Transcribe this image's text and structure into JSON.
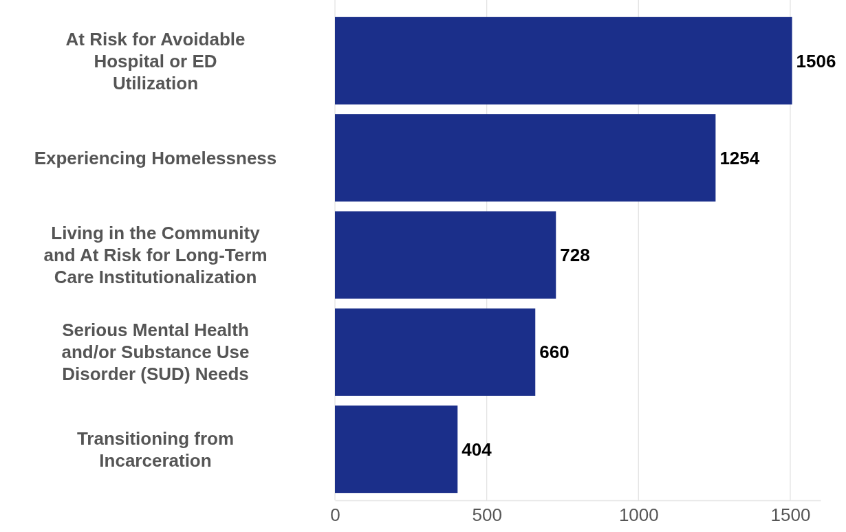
{
  "chart_data": {
    "type": "bar",
    "orientation": "horizontal",
    "categories": [
      "At Risk for Avoidable Hospital or ED Utilization",
      "Experiencing Homelessness",
      "Living in the Community and At Risk for Long-Term Care Institutionalization",
      "Serious Mental Health and/or Substance Use Disorder (SUD) Needs",
      "Transitioning from Incarceration"
    ],
    "values": [
      1506,
      1254,
      728,
      660,
      404
    ],
    "color": "#1b2f8a",
    "xlim": [
      0,
      1600
    ],
    "xticks": [
      0,
      500,
      1000,
      1500
    ],
    "grid": "x",
    "data_labels": true
  }
}
